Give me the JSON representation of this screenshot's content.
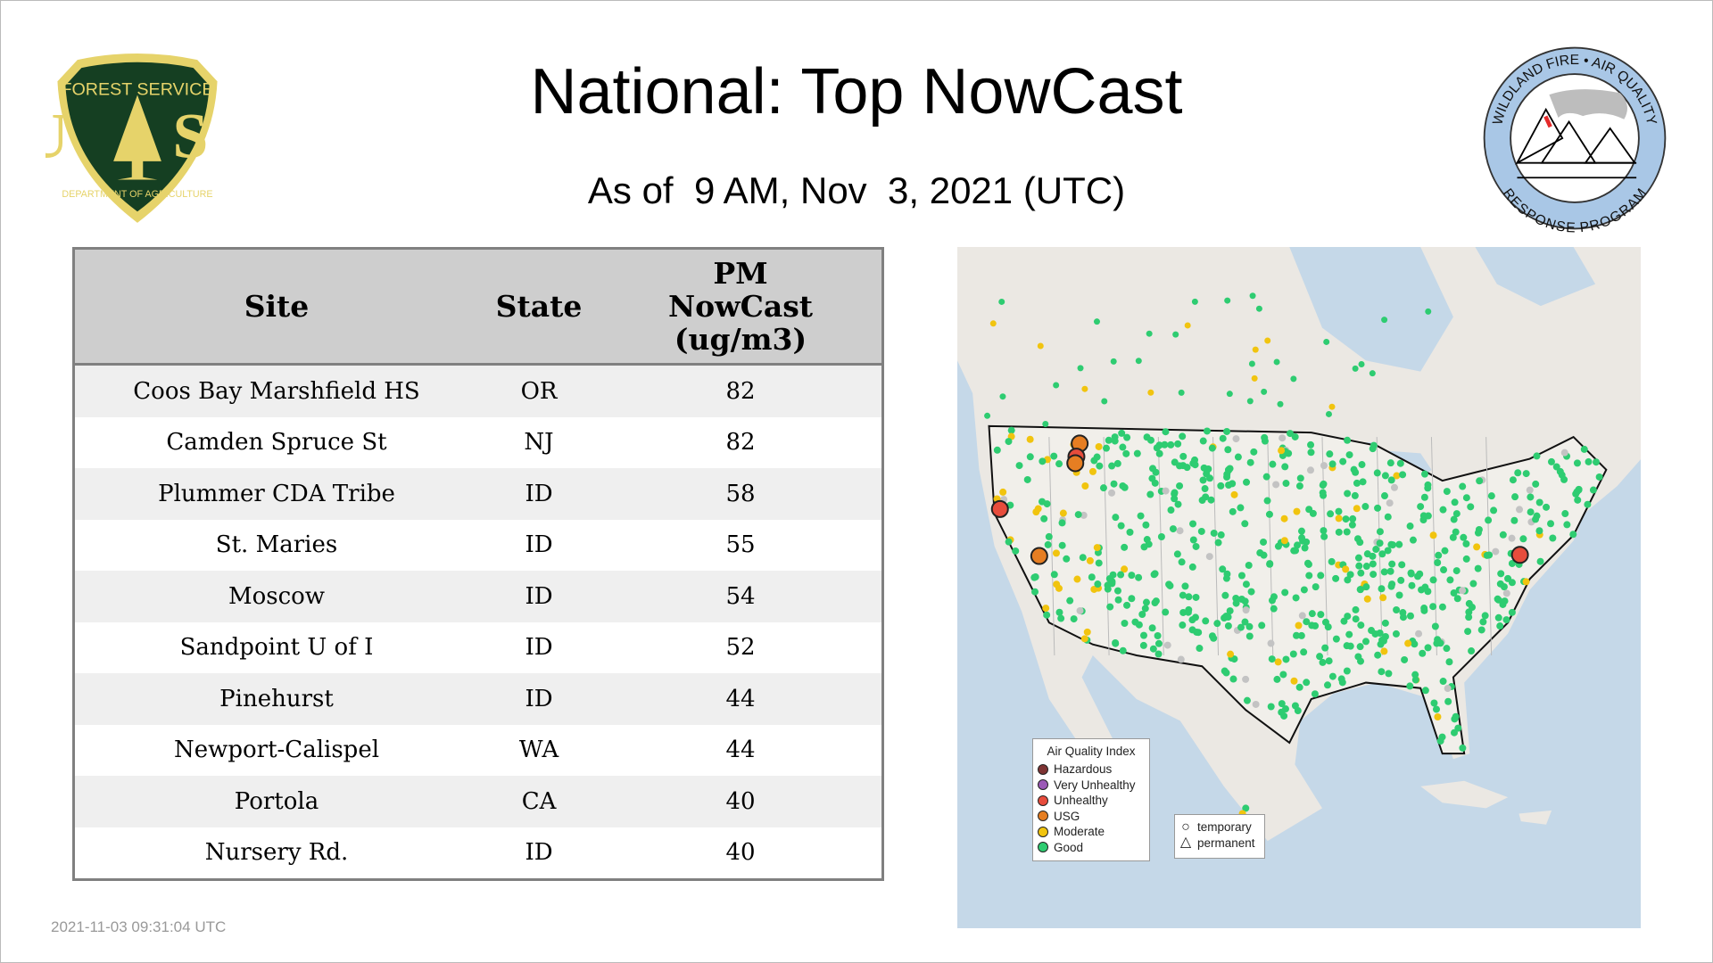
{
  "header": {
    "title": "National: Top NowCast",
    "subtitle": "As of  9 AM, Nov  3, 2021 (UTC)"
  },
  "logos": {
    "left": {
      "name": "forest-service-logo",
      "text_top": "FOREST SERVICE",
      "text_main": "U S",
      "text_bottom": "DEPARTMENT OF AGRICULTURE"
    },
    "right": {
      "name": "wildland-fire-air-quality-logo",
      "text_top": "WILDLAND FIRE • AIR QUALITY",
      "text_bottom": "RESPONSE PROGRAM"
    }
  },
  "table": {
    "headers": [
      "Site",
      "State",
      "PM NowCast (ug/m3)"
    ],
    "header_lines": [
      "PM",
      "NowCast",
      "(ug/m3)"
    ],
    "rows": [
      {
        "site": "Coos Bay Marshfield HS",
        "state": "OR",
        "value": "82"
      },
      {
        "site": "Camden Spruce St",
        "state": "NJ",
        "value": "82"
      },
      {
        "site": "Plummer CDA Tribe",
        "state": "ID",
        "value": "58"
      },
      {
        "site": "St. Maries",
        "state": "ID",
        "value": "55"
      },
      {
        "site": "Moscow",
        "state": "ID",
        "value": "54"
      },
      {
        "site": "Sandpoint U of I",
        "state": "ID",
        "value": "52"
      },
      {
        "site": "Pinehurst",
        "state": "ID",
        "value": "44"
      },
      {
        "site": "Newport-Calispel",
        "state": "WA",
        "value": "44"
      },
      {
        "site": "Portola",
        "state": "CA",
        "value": "40"
      },
      {
        "site": "Nursery Rd.",
        "state": "ID",
        "value": "40"
      }
    ]
  },
  "map": {
    "legend_title": "Air Quality Index",
    "categories": [
      {
        "label": "Hazardous",
        "color": "#7e3434"
      },
      {
        "label": "Very Unhealthy",
        "color": "#9b59b6"
      },
      {
        "label": "Unhealthy",
        "color": "#e74c3c"
      },
      {
        "label": "USG",
        "color": "#e67e22"
      },
      {
        "label": "Moderate",
        "color": "#f1c40f"
      },
      {
        "label": "Good",
        "color": "#2ecc71"
      }
    ],
    "monitor_types": [
      {
        "label": "temporary",
        "icon": "circle-icon"
      },
      {
        "label": "permanent",
        "icon": "triangle-icon"
      }
    ],
    "colors": {
      "water": "#c5d8e8",
      "land": "#ebe8e3",
      "no_data": "#c3c3c3"
    }
  },
  "footer": {
    "timestamp": "2021-11-03 09:31:04 UTC"
  }
}
